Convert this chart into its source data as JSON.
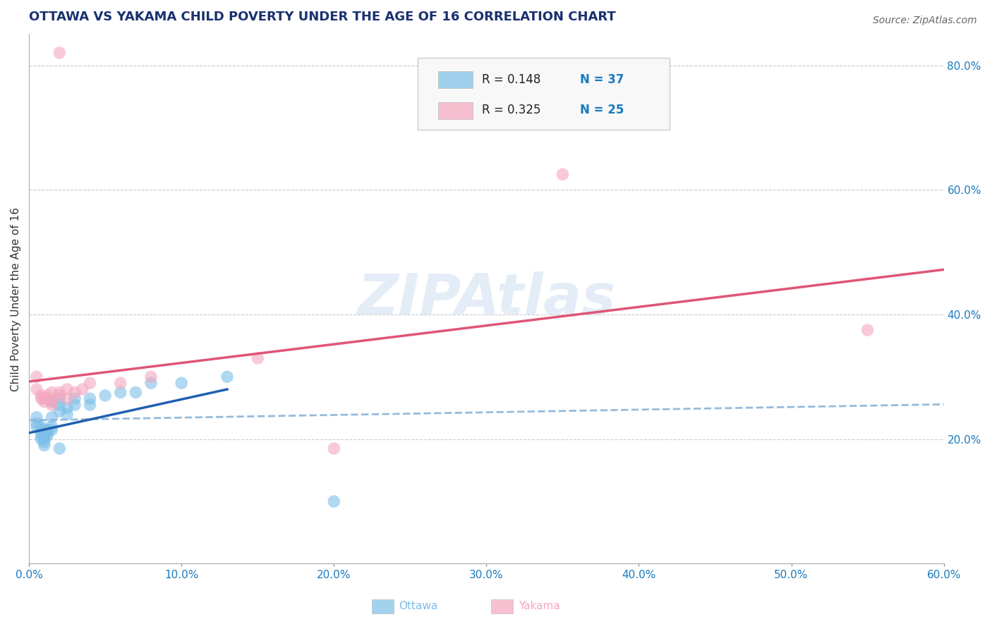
{
  "title": "OTTAWA VS YAKAMA CHILD POVERTY UNDER THE AGE OF 16 CORRELATION CHART",
  "source": "Source: ZipAtlas.com",
  "ylabel": "Child Poverty Under the Age of 16",
  "watermark": "ZIPAtlas",
  "xlim": [
    0.0,
    0.6
  ],
  "ylim": [
    0.0,
    0.85
  ],
  "xticks": [
    0.0,
    0.1,
    0.2,
    0.3,
    0.4,
    0.5,
    0.6
  ],
  "xtick_labels": [
    "0.0%",
    "10.0%",
    "20.0%",
    "30.0%",
    "40.0%",
    "50.0%",
    "60.0%"
  ],
  "ytick_labels_right": [
    "20.0%",
    "40.0%",
    "60.0%",
    "80.0%"
  ],
  "yticks_right": [
    0.2,
    0.4,
    0.6,
    0.8
  ],
  "legend_r_ottawa": "R = 0.148",
  "legend_n_ottawa": "N = 37",
  "legend_r_yakama": "R = 0.325",
  "legend_n_yakama": "N = 25",
  "ottawa_color": "#7dbfe8",
  "yakama_color": "#f4a7be",
  "ottawa_line_color": "#2060b0",
  "yakama_line_color": "#e05575",
  "dashed_line_color": "#8ab4d8",
  "background_color": "#ffffff",
  "grid_color": "#cccccc",
  "title_color": "#1a3070",
  "source_color": "#666666",
  "r_value_color": "#1a7abf",
  "watermark_color": "#c5d8ef",
  "ottawa_points": [
    [
      0.005,
      0.235
    ],
    [
      0.005,
      0.225
    ],
    [
      0.005,
      0.22
    ],
    [
      0.008,
      0.22
    ],
    [
      0.008,
      0.21
    ],
    [
      0.008,
      0.205
    ],
    [
      0.008,
      0.2
    ],
    [
      0.01,
      0.215
    ],
    [
      0.01,
      0.21
    ],
    [
      0.01,
      0.205
    ],
    [
      0.01,
      0.2
    ],
    [
      0.01,
      0.195
    ],
    [
      0.01,
      0.19
    ],
    [
      0.012,
      0.215
    ],
    [
      0.012,
      0.21
    ],
    [
      0.012,
      0.205
    ],
    [
      0.015,
      0.26
    ],
    [
      0.015,
      0.235
    ],
    [
      0.015,
      0.22
    ],
    [
      0.015,
      0.215
    ],
    [
      0.02,
      0.265
    ],
    [
      0.02,
      0.255
    ],
    [
      0.02,
      0.245
    ],
    [
      0.025,
      0.25
    ],
    [
      0.025,
      0.24
    ],
    [
      0.03,
      0.265
    ],
    [
      0.03,
      0.255
    ],
    [
      0.04,
      0.265
    ],
    [
      0.04,
      0.255
    ],
    [
      0.05,
      0.27
    ],
    [
      0.06,
      0.275
    ],
    [
      0.07,
      0.275
    ],
    [
      0.08,
      0.29
    ],
    [
      0.1,
      0.29
    ],
    [
      0.13,
      0.3
    ],
    [
      0.2,
      0.1
    ],
    [
      0.02,
      0.185
    ]
  ],
  "yakama_points": [
    [
      0.02,
      0.82
    ],
    [
      0.005,
      0.3
    ],
    [
      0.005,
      0.28
    ],
    [
      0.008,
      0.27
    ],
    [
      0.008,
      0.265
    ],
    [
      0.01,
      0.265
    ],
    [
      0.01,
      0.26
    ],
    [
      0.012,
      0.27
    ],
    [
      0.012,
      0.265
    ],
    [
      0.015,
      0.275
    ],
    [
      0.015,
      0.26
    ],
    [
      0.015,
      0.255
    ],
    [
      0.02,
      0.275
    ],
    [
      0.02,
      0.27
    ],
    [
      0.025,
      0.28
    ],
    [
      0.025,
      0.265
    ],
    [
      0.03,
      0.275
    ],
    [
      0.035,
      0.28
    ],
    [
      0.04,
      0.29
    ],
    [
      0.06,
      0.29
    ],
    [
      0.08,
      0.3
    ],
    [
      0.15,
      0.33
    ],
    [
      0.2,
      0.185
    ],
    [
      0.35,
      0.625
    ],
    [
      0.55,
      0.375
    ]
  ],
  "figsize": [
    14.06,
    8.92
  ],
  "dpi": 100
}
